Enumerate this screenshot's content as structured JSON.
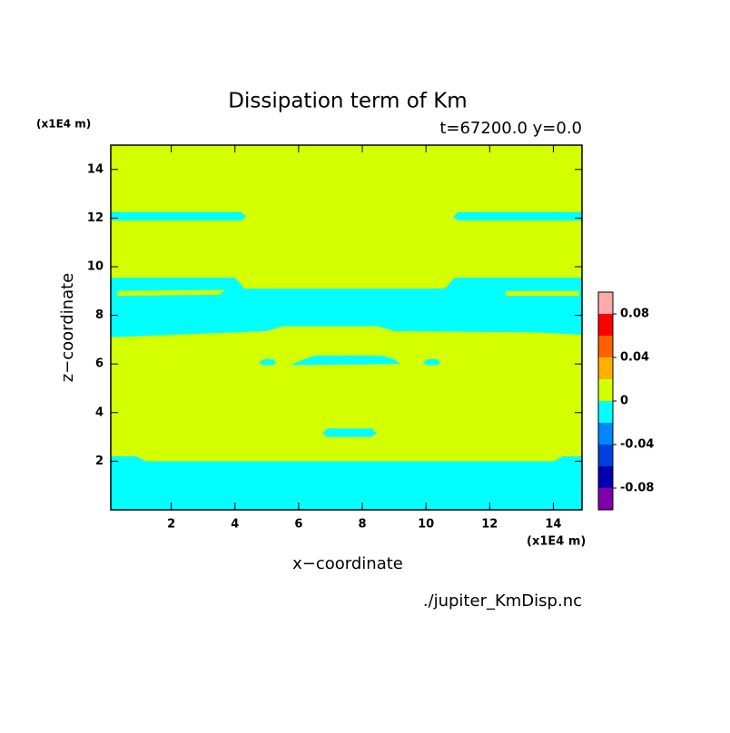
{
  "chart_data": {
    "type": "contour",
    "title": "Dissipation term of Km",
    "subtitle": "t=67200.0 y=0.0",
    "xlabel": "x−coordinate",
    "ylabel": "z−coordinate",
    "xunit": "(x1E4 m)",
    "yunit": "(x1E4 m)",
    "footer": "./jupiter_KmDisp.nc",
    "xlim": [
      0.1,
      14.9
    ],
    "ylim": [
      0,
      15
    ],
    "xticks": [
      2,
      4,
      6,
      8,
      10,
      12,
      14
    ],
    "yticks": [
      2,
      4,
      6,
      8,
      10,
      12,
      14
    ],
    "fill_color": "#d4ff00",
    "regions": [
      {
        "color": "#00ffff",
        "polygon": [
          [
            0.1,
            0
          ],
          [
            14.9,
            0
          ],
          [
            14.9,
            2.2
          ],
          [
            14.3,
            2.2
          ],
          [
            14.0,
            2.0
          ],
          [
            1.2,
            2.0
          ],
          [
            0.9,
            2.2
          ],
          [
            0.1,
            2.2
          ]
        ]
      },
      {
        "color": "#00ffff",
        "polygon": [
          [
            0.1,
            12.25
          ],
          [
            4.2,
            12.25
          ],
          [
            4.35,
            12.05
          ],
          [
            4.2,
            11.9
          ],
          [
            0.1,
            11.9
          ]
        ]
      },
      {
        "color": "#00ffff",
        "polygon": [
          [
            10.85,
            12.05
          ],
          [
            11.0,
            12.25
          ],
          [
            14.9,
            12.25
          ],
          [
            14.9,
            11.9
          ],
          [
            11.0,
            11.9
          ]
        ]
      },
      {
        "color": "#00ffff",
        "polygon": [
          [
            0.1,
            9.55
          ],
          [
            4.0,
            9.55
          ],
          [
            4.3,
            9.1
          ],
          [
            10.6,
            9.1
          ],
          [
            10.9,
            9.55
          ],
          [
            14.9,
            9.55
          ],
          [
            14.9,
            7.2
          ],
          [
            13.5,
            7.3
          ],
          [
            9.0,
            7.35
          ],
          [
            8.5,
            7.55
          ],
          [
            5.5,
            7.55
          ],
          [
            5.0,
            7.35
          ],
          [
            0.1,
            7.1
          ]
        ]
      },
      {
        "color": "#d4ff00",
        "polygon": [
          [
            0.3,
            9.0
          ],
          [
            3.7,
            9.05
          ],
          [
            3.5,
            8.85
          ],
          [
            0.3,
            8.8
          ]
        ]
      },
      {
        "color": "#d4ff00",
        "polygon": [
          [
            12.5,
            9.0
          ],
          [
            14.8,
            9.0
          ],
          [
            14.8,
            8.8
          ],
          [
            12.5,
            8.8
          ]
        ]
      },
      {
        "color": "#00ffff",
        "polygon": [
          [
            5.8,
            6.0
          ],
          [
            6.2,
            6.2
          ],
          [
            6.5,
            6.35
          ],
          [
            8.6,
            6.35
          ],
          [
            9.0,
            6.2
          ],
          [
            9.2,
            6.0
          ],
          [
            5.8,
            5.95
          ]
        ]
      },
      {
        "color": "#00ffff",
        "polygon": [
          [
            4.75,
            6.05
          ],
          [
            4.9,
            6.2
          ],
          [
            5.2,
            6.2
          ],
          [
            5.3,
            6.05
          ],
          [
            5.2,
            5.95
          ],
          [
            4.9,
            5.95
          ]
        ]
      },
      {
        "color": "#00ffff",
        "polygon": [
          [
            9.9,
            6.05
          ],
          [
            10.05,
            6.2
          ],
          [
            10.35,
            6.2
          ],
          [
            10.45,
            6.05
          ],
          [
            10.35,
            5.95
          ],
          [
            10.05,
            5.95
          ]
        ]
      },
      {
        "color": "#00ffff",
        "polygon": [
          [
            6.75,
            3.15
          ],
          [
            6.9,
            3.35
          ],
          [
            8.3,
            3.35
          ],
          [
            8.45,
            3.15
          ],
          [
            8.3,
            3.0
          ],
          [
            6.9,
            3.0
          ]
        ]
      }
    ],
    "levels": [
      -0.1,
      -0.08,
      -0.06,
      -0.04,
      -0.02,
      0,
      0.02,
      0.04,
      0.06,
      0.08,
      0.1
    ],
    "level_colors": [
      "#7f00aa",
      "#0000b0",
      "#0040e0",
      "#0088ff",
      "#00ffff",
      "#d4ff00",
      "#ffb000",
      "#ff6000",
      "#ff0000",
      "#ffaaaa"
    ],
    "cticks": [
      -0.08,
      -0.04,
      0,
      0.04,
      0.08
    ]
  }
}
